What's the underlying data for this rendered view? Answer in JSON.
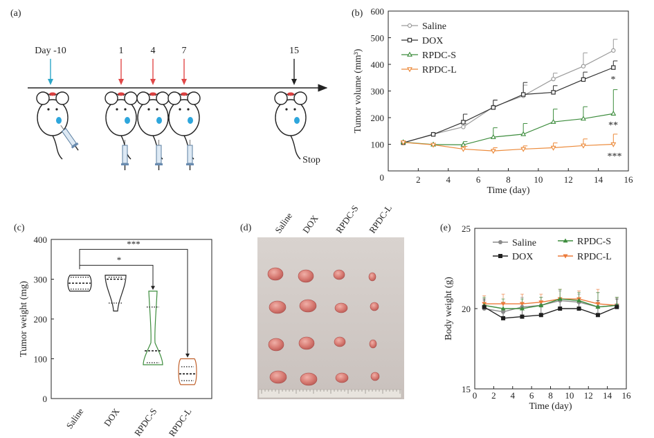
{
  "panel_labels": {
    "a": "(a)",
    "b": "(b)",
    "c": "(c)",
    "d": "(d)",
    "e": "(e)"
  },
  "timeline": {
    "events": [
      {
        "label": "Day -10",
        "color": "#2ca6c8"
      },
      {
        "label": "1",
        "color": "#e04848"
      },
      {
        "label": "4",
        "color": "#e04848"
      },
      {
        "label": "7",
        "color": "#e04848"
      },
      {
        "label": "15",
        "color": "#222222"
      }
    ],
    "stop_label": "Stop"
  },
  "chart_data": [
    {
      "type": "line",
      "panel": "(b)",
      "xlabel": "Time (day)",
      "ylabel": "Tumor volume (mm³)",
      "xlim": [
        0,
        16
      ],
      "ylim": [
        0,
        600
      ],
      "xticks": [
        "2",
        "4",
        "6",
        "8",
        "10",
        "12",
        "14",
        "16"
      ],
      "yticks": [
        "100",
        "200",
        "300",
        "400",
        "500",
        "600"
      ],
      "origin_label": "0",
      "x": [
        1,
        3,
        5,
        7,
        9,
        11,
        13,
        15
      ],
      "series": [
        {
          "name": "Saline",
          "color": "#9a9a9a",
          "marker": "circle",
          "values": [
            105,
            138,
            165,
            240,
            282,
            345,
            393,
            452
          ],
          "errors": [
            0,
            0,
            12,
            25,
            40,
            22,
            50,
            42
          ]
        },
        {
          "name": "DOX",
          "color": "#303030",
          "marker": "square",
          "values": [
            106,
            137,
            183,
            238,
            287,
            295,
            343,
            388
          ],
          "errors": [
            0,
            0,
            30,
            28,
            45,
            25,
            28,
            25
          ]
        },
        {
          "name": "RPDC-S",
          "color": "#3c8c3c",
          "marker": "triangle-up",
          "values": [
            108,
            99,
            98,
            127,
            138,
            184,
            196,
            215
          ],
          "errors": [
            0,
            0,
            12,
            35,
            40,
            48,
            45,
            90
          ]
        },
        {
          "name": "RPDC-L",
          "color": "#ec8a3a",
          "marker": "triangle-down",
          "values": [
            107,
            98,
            82,
            75,
            82,
            87,
            95,
            100
          ],
          "errors": [
            0,
            0,
            10,
            12,
            12,
            18,
            25,
            38
          ]
        }
      ],
      "annotations": [
        "*",
        "**",
        "***"
      ]
    },
    {
      "type": "violin",
      "panel": "(c)",
      "ylabel": "Tumor weight (mg)",
      "ylim": [
        0,
        400
      ],
      "yticks": [
        "0",
        "100",
        "200",
        "300",
        "400"
      ],
      "categories": [
        "Saline",
        "DOX",
        "RPDC-S",
        "RPDC-L"
      ],
      "colors": [
        "#222222",
        "#222222",
        "#3c8c3c",
        "#c0602a"
      ],
      "ranges": [
        [
          270,
          310
        ],
        [
          220,
          310
        ],
        [
          85,
          270
        ],
        [
          35,
          100
        ]
      ],
      "medians": [
        290,
        300,
        120,
        62
      ],
      "quartiles": [
        [
          275,
          305
        ],
        [
          240,
          305
        ],
        [
          90,
          230
        ],
        [
          45,
          80
        ]
      ],
      "significance": [
        "***",
        "*"
      ]
    },
    {
      "type": "line",
      "panel": "(e)",
      "xlabel": "Time (day)",
      "ylabel": "Body weight (g)",
      "xlim": [
        0,
        16
      ],
      "ylim": [
        15,
        25
      ],
      "xticks": [
        "0",
        "2",
        "4",
        "6",
        "8",
        "10",
        "12",
        "14",
        "16"
      ],
      "yticks": [
        "15",
        "20",
        "25"
      ],
      "x": [
        1,
        3,
        5,
        7,
        9,
        11,
        13,
        15
      ],
      "series": [
        {
          "name": "Saline",
          "color": "#8a8a8a",
          "marker": "circle",
          "values": [
            20.0,
            19.8,
            20.1,
            20.2,
            20.5,
            20.4,
            20.1,
            20.2
          ]
        },
        {
          "name": "DOX",
          "color": "#202020",
          "marker": "square",
          "values": [
            20.1,
            19.4,
            19.5,
            19.6,
            20.0,
            20.0,
            19.6,
            20.1
          ]
        },
        {
          "name": "RPDC-S",
          "color": "#3c8c3c",
          "marker": "triangle-up",
          "values": [
            20.2,
            20.0,
            20.0,
            20.2,
            20.6,
            20.5,
            20.1,
            20.2
          ]
        },
        {
          "name": "RPDC-L",
          "color": "#ec7a3a",
          "marker": "triangle-down",
          "values": [
            20.3,
            20.3,
            20.3,
            20.4,
            20.6,
            20.6,
            20.3,
            20.2
          ]
        }
      ],
      "errors": [
        0.5,
        0.6,
        0.6,
        0.5,
        0.6,
        0.5,
        0.9,
        0.5
      ]
    }
  ],
  "photo": {
    "column_labels": [
      "Saline",
      "DOX",
      "RPDC-S",
      "RPDC-L"
    ]
  }
}
